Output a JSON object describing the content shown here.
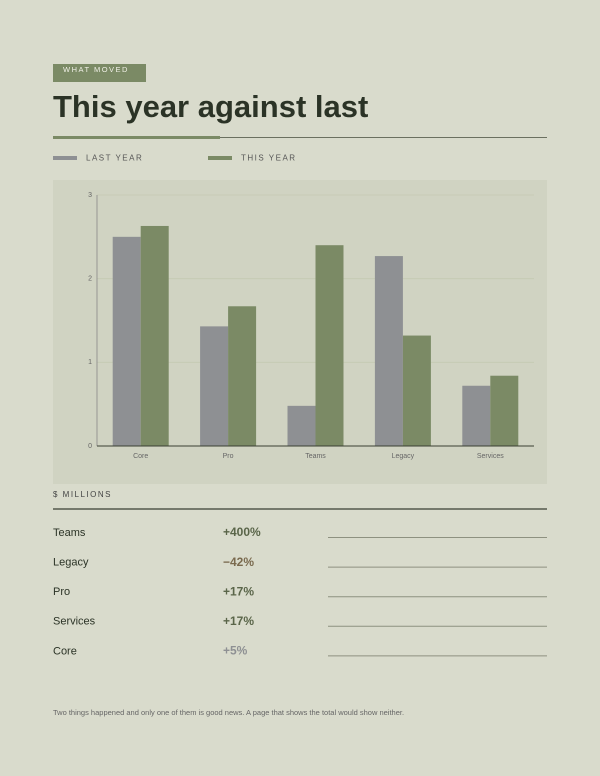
{
  "eyebrow": "WHAT MOVED",
  "chart_data": {
    "type": "bar",
    "title": "This year against last",
    "categories": [
      "Core",
      "Pro",
      "Teams",
      "Legacy",
      "Services"
    ],
    "series": [
      {
        "name": "LAST YEAR",
        "color": "#8e9093",
        "values": [
          2.5,
          1.43,
          0.48,
          2.27,
          0.72
        ]
      },
      {
        "name": "THIS YEAR",
        "color": "#7b8a65",
        "values": [
          2.63,
          1.67,
          2.4,
          1.32,
          0.84
        ]
      }
    ],
    "ylim": [
      0,
      3
    ],
    "yticks": [
      0,
      1,
      2,
      3
    ],
    "grid": true,
    "y_label": "$ MILLIONS"
  },
  "table": {
    "rows": [
      {
        "name": "Teams",
        "change": "+400%",
        "color": "#5a6549"
      },
      {
        "name": "Legacy",
        "change": "−42%",
        "color": "#7a6a4e"
      },
      {
        "name": "Pro",
        "change": "+17%",
        "color": "#5a6549"
      },
      {
        "name": "Services",
        "change": "+17%",
        "color": "#5a6549"
      },
      {
        "name": "Core",
        "change": "+5%",
        "color": "#8e9093"
      }
    ]
  },
  "footnote": "Two things happened and only one of them is good news. A page that shows the total would show neither."
}
